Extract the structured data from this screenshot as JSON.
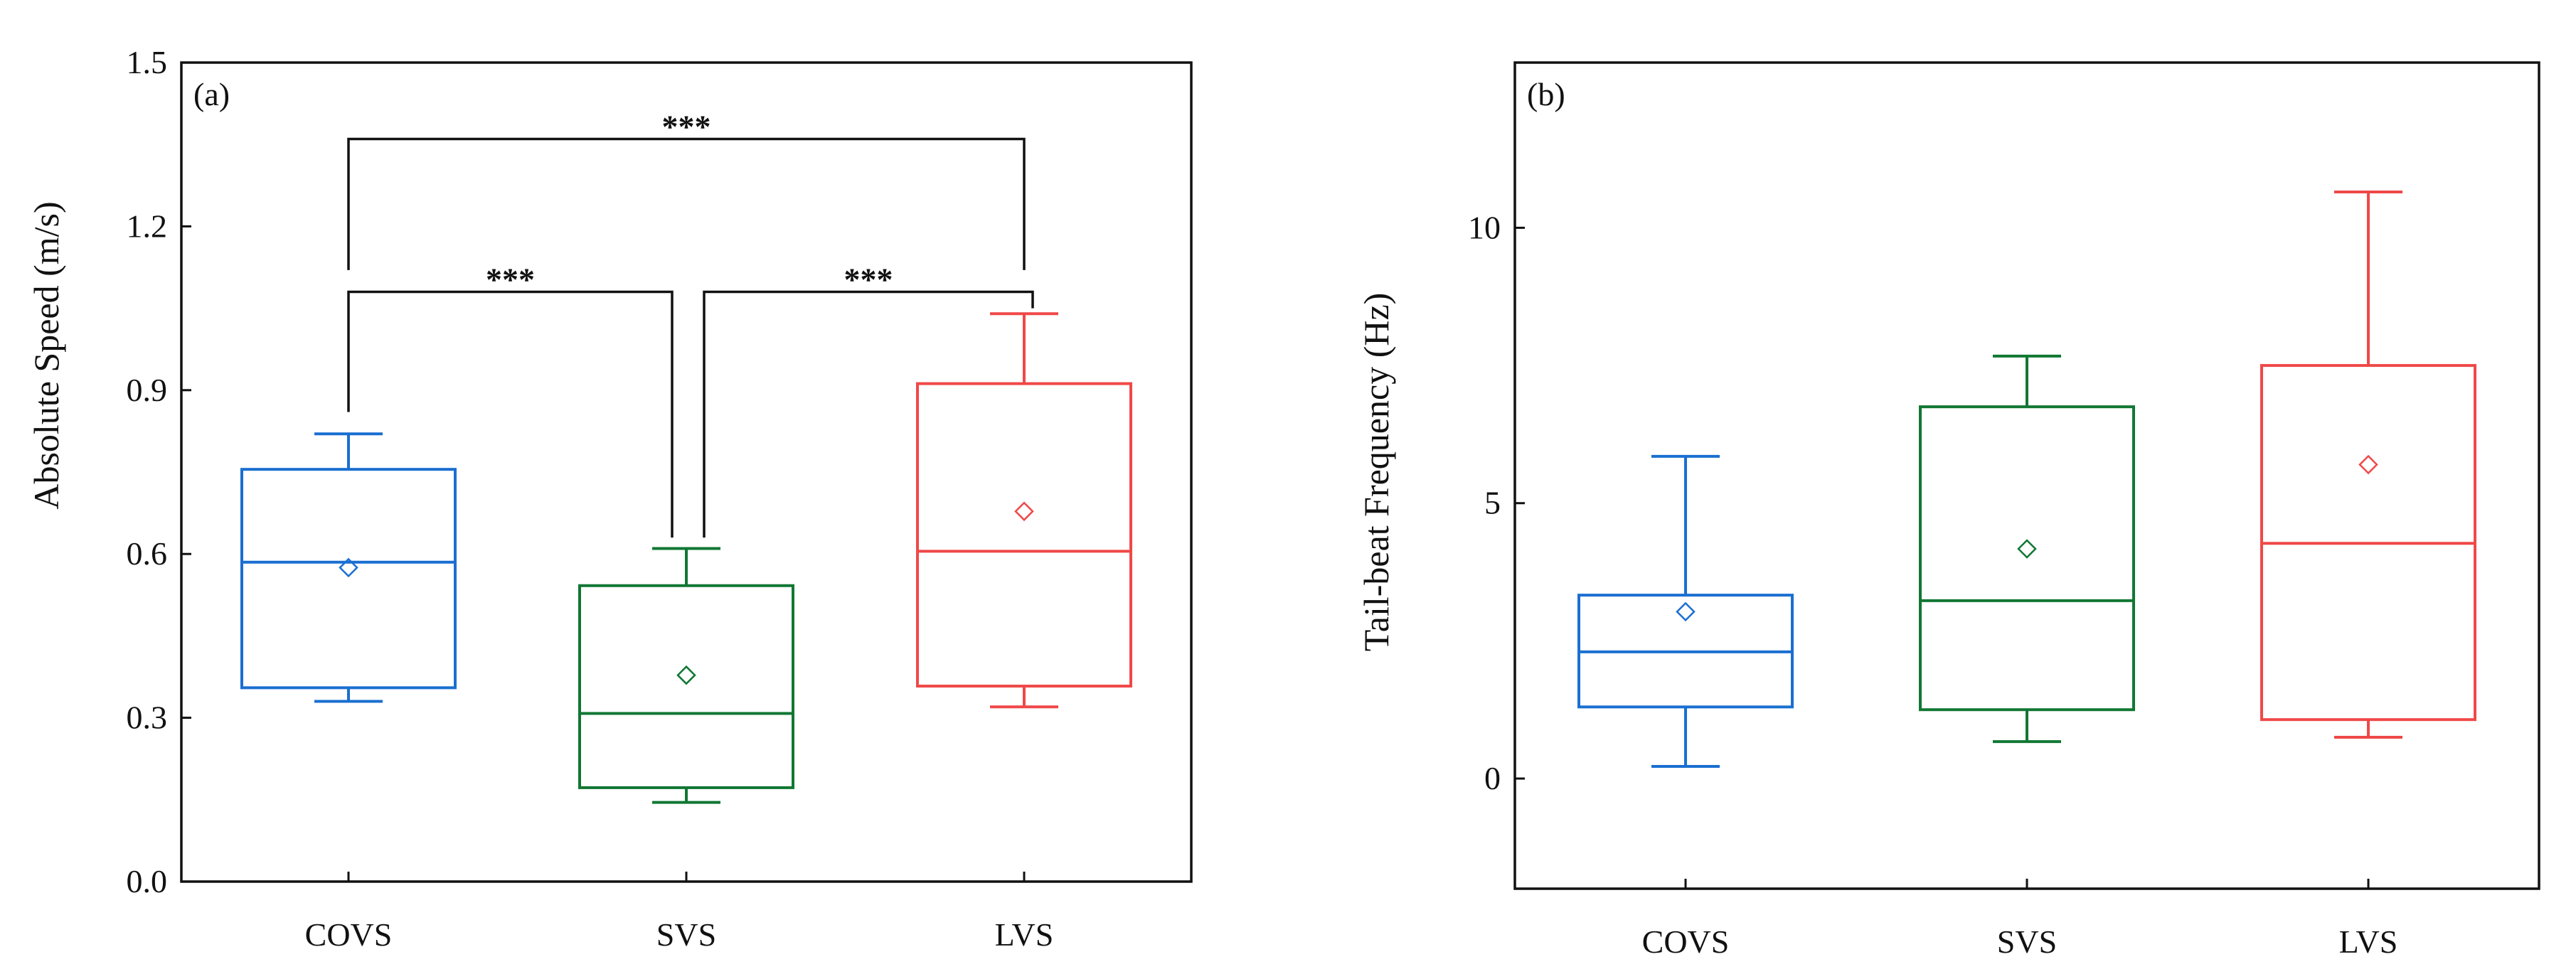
{
  "chart_data": [
    {
      "type": "box",
      "panel_label": "(a)",
      "ylabel": "Absolute Speed (m/s)",
      "xlabel": "",
      "ylim": [
        0.0,
        1.5
      ],
      "yticks": [
        0.0,
        0.3,
        0.6,
        0.9,
        1.2,
        1.5
      ],
      "ytick_labels": [
        "0.0",
        "0.3",
        "0.6",
        "0.9",
        "1.2",
        "1.5"
      ],
      "categories": [
        "COVS",
        "SVS",
        "LVS"
      ],
      "colors": [
        "#1a6fd1",
        "#117733",
        "#f04848"
      ],
      "boxes": [
        {
          "name": "COVS",
          "whisker_low": 0.33,
          "q1": 0.355,
          "median": 0.585,
          "q3": 0.755,
          "whisker_high": 0.82,
          "mean": 0.575
        },
        {
          "name": "SVS",
          "whisker_low": 0.145,
          "q1": 0.172,
          "median": 0.308,
          "q3": 0.542,
          "whisker_high": 0.61,
          "mean": 0.378
        },
        {
          "name": "LVS",
          "whisker_low": 0.32,
          "q1": 0.358,
          "median": 0.605,
          "q3": 0.912,
          "whisker_high": 1.04,
          "mean": 0.678
        }
      ],
      "significance": [
        {
          "from": "COVS",
          "to": "LVS",
          "label": "***",
          "y": 1.36,
          "left_drop": 1.12,
          "right_drop": 1.12
        },
        {
          "from": "COVS",
          "to": "SVS",
          "label": "***",
          "y": 1.08,
          "left_drop": 0.86,
          "right_drop": 0.63
        },
        {
          "from": "SVS",
          "to": "LVS",
          "label": "***",
          "y": 1.08,
          "left_drop": 0.63,
          "right_drop": 1.05
        }
      ]
    },
    {
      "type": "box",
      "panel_label": "(b)",
      "ylabel": "Tail-beat Frequency (Hz)",
      "xlabel": "",
      "ylim": [
        -2.0,
        13.0
      ],
      "yticks": [
        0,
        5,
        10
      ],
      "ytick_labels": [
        "0",
        "5",
        "10"
      ],
      "categories": [
        "COVS",
        "SVS",
        "LVS"
      ],
      "colors": [
        "#1a6fd1",
        "#117733",
        "#f04848"
      ],
      "boxes": [
        {
          "name": "COVS",
          "whisker_low": 0.22,
          "q1": 1.3,
          "median": 2.3,
          "q3": 3.33,
          "whisker_high": 5.85,
          "mean": 3.03
        },
        {
          "name": "SVS",
          "whisker_low": 0.67,
          "q1": 1.25,
          "median": 3.23,
          "q3": 6.75,
          "whisker_high": 7.67,
          "mean": 4.17
        },
        {
          "name": "LVS",
          "whisker_low": 0.75,
          "q1": 1.07,
          "median": 4.27,
          "q3": 7.5,
          "whisker_high": 10.65,
          "mean": 5.7
        }
      ],
      "significance": []
    }
  ]
}
